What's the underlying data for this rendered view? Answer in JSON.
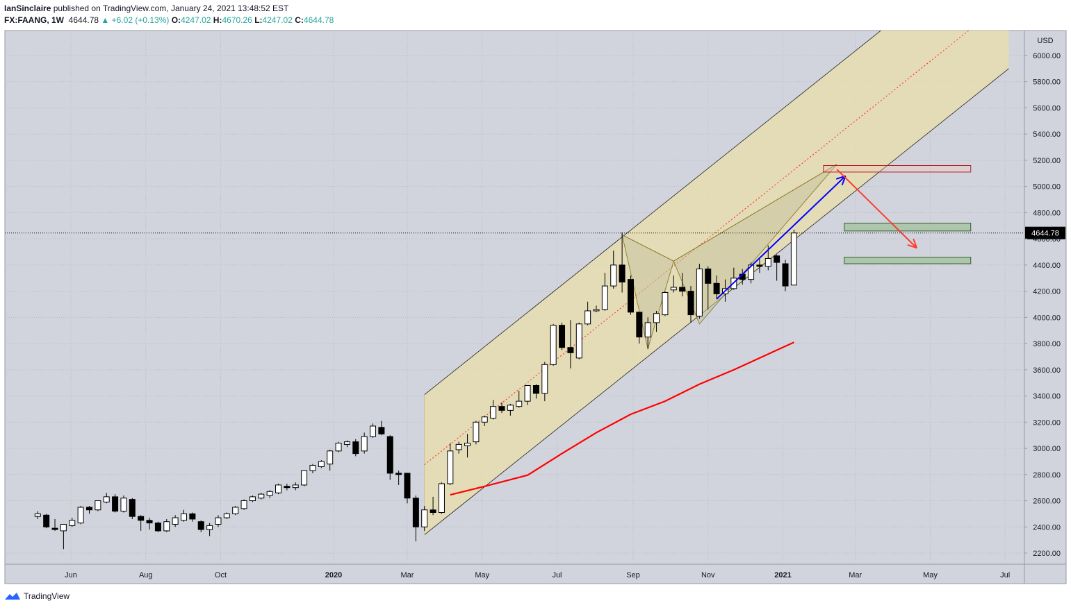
{
  "header": {
    "author": "IanSinclaire",
    "published_text": "published on TradingView.com, January 24, 2021 13:48:52 EST",
    "symbol": "FX:FAANG, 1W",
    "last": "4644.78",
    "change": "+6.02 (+0.13%)",
    "open_label": "O:",
    "open": "4247.02",
    "high_label": "H:",
    "high": "4670.26",
    "low_label": "L:",
    "low": "4247.02",
    "close_label": "C:",
    "close": "4644.78"
  },
  "footer": {
    "brand": "TradingView",
    "icon": "tradingview-logo-icon"
  },
  "colors": {
    "background": "#d1d4dc",
    "up": "#ffffff",
    "down": "#000000",
    "channel_fill": "#e9dfa9",
    "ma": "#ff0000",
    "arrow_up": "#0000ff",
    "arrow_down": "#ff3b30",
    "target_box": "#b22222",
    "support_box": "#7fa87f",
    "price_label_bg": "#000000"
  },
  "chart_data": {
    "type": "candlestick",
    "currency": "USD",
    "interval": "1W",
    "y_ticks": [
      "2200.00",
      "2400.00",
      "2600.00",
      "2800.00",
      "3000.00",
      "3200.00",
      "3400.00",
      "3600.00",
      "3800.00",
      "4000.00",
      "4200.00",
      "4400.00",
      "4600.00",
      "4800.00",
      "5000.00",
      "5200.00",
      "5400.00",
      "5600.00",
      "5800.00",
      "6000.00"
    ],
    "ylim": [
      2050,
      6200
    ],
    "x_labels": [
      {
        "text": "Jun",
        "date": "2019-06-01",
        "bold": false
      },
      {
        "text": "Aug",
        "date": "2019-08-01",
        "bold": false
      },
      {
        "text": "Oct",
        "date": "2019-10-01",
        "bold": false
      },
      {
        "text": "2020",
        "date": "2020-01-01",
        "bold": true
      },
      {
        "text": "Mar",
        "date": "2020-03-01",
        "bold": false
      },
      {
        "text": "May",
        "date": "2020-05-01",
        "bold": false
      },
      {
        "text": "Jul",
        "date": "2020-07-01",
        "bold": false
      },
      {
        "text": "Sep",
        "date": "2020-09-01",
        "bold": false
      },
      {
        "text": "Nov",
        "date": "2020-11-01",
        "bold": false
      },
      {
        "text": "2021",
        "date": "2021-01-01",
        "bold": true
      },
      {
        "text": "Mar",
        "date": "2021-03-01",
        "bold": false
      },
      {
        "text": "May",
        "date": "2021-05-01",
        "bold": false
      },
      {
        "text": "Jul",
        "date": "2021-07-01",
        "bold": false
      }
    ],
    "last_price_label": "4644.78",
    "last_price": 4644.78,
    "candles": [
      {
        "date": "2019-05-05",
        "o": 2480,
        "h": 2520,
        "l": 2460,
        "c": 2500
      },
      {
        "date": "2019-05-12",
        "o": 2490,
        "h": 2500,
        "l": 2390,
        "c": 2400
      },
      {
        "date": "2019-05-19",
        "o": 2390,
        "h": 2460,
        "l": 2370,
        "c": 2380
      },
      {
        "date": "2019-05-26",
        "o": 2370,
        "h": 2420,
        "l": 2230,
        "c": 2420
      },
      {
        "date": "2019-06-02",
        "o": 2410,
        "h": 2470,
        "l": 2400,
        "c": 2450
      },
      {
        "date": "2019-06-09",
        "o": 2430,
        "h": 2560,
        "l": 2420,
        "c": 2550
      },
      {
        "date": "2019-06-16",
        "o": 2550,
        "h": 2560,
        "l": 2500,
        "c": 2530
      },
      {
        "date": "2019-06-23",
        "o": 2530,
        "h": 2600,
        "l": 2520,
        "c": 2600
      },
      {
        "date": "2019-06-30",
        "o": 2590,
        "h": 2660,
        "l": 2580,
        "c": 2630
      },
      {
        "date": "2019-07-07",
        "o": 2630,
        "h": 2650,
        "l": 2510,
        "c": 2520
      },
      {
        "date": "2019-07-14",
        "o": 2520,
        "h": 2640,
        "l": 2510,
        "c": 2620
      },
      {
        "date": "2019-07-21",
        "o": 2610,
        "h": 2620,
        "l": 2460,
        "c": 2480
      },
      {
        "date": "2019-07-28",
        "o": 2480,
        "h": 2490,
        "l": 2370,
        "c": 2450
      },
      {
        "date": "2019-08-04",
        "o": 2450,
        "h": 2470,
        "l": 2380,
        "c": 2430
      },
      {
        "date": "2019-08-11",
        "o": 2430,
        "h": 2440,
        "l": 2360,
        "c": 2370
      },
      {
        "date": "2019-08-18",
        "o": 2370,
        "h": 2460,
        "l": 2360,
        "c": 2440
      },
      {
        "date": "2019-08-25",
        "o": 2420,
        "h": 2490,
        "l": 2400,
        "c": 2470
      },
      {
        "date": "2019-09-01",
        "o": 2450,
        "h": 2530,
        "l": 2440,
        "c": 2500
      },
      {
        "date": "2019-09-08",
        "o": 2500,
        "h": 2510,
        "l": 2440,
        "c": 2460
      },
      {
        "date": "2019-09-15",
        "o": 2440,
        "h": 2450,
        "l": 2360,
        "c": 2380
      },
      {
        "date": "2019-09-22",
        "o": 2380,
        "h": 2430,
        "l": 2330,
        "c": 2410
      },
      {
        "date": "2019-09-29",
        "o": 2420,
        "h": 2490,
        "l": 2400,
        "c": 2470
      },
      {
        "date": "2019-10-06",
        "o": 2470,
        "h": 2510,
        "l": 2460,
        "c": 2500
      },
      {
        "date": "2019-10-13",
        "o": 2500,
        "h": 2560,
        "l": 2490,
        "c": 2550
      },
      {
        "date": "2019-10-20",
        "o": 2540,
        "h": 2610,
        "l": 2530,
        "c": 2600
      },
      {
        "date": "2019-10-27",
        "o": 2600,
        "h": 2640,
        "l": 2590,
        "c": 2630
      },
      {
        "date": "2019-11-03",
        "o": 2620,
        "h": 2660,
        "l": 2610,
        "c": 2650
      },
      {
        "date": "2019-11-10",
        "o": 2640,
        "h": 2680,
        "l": 2620,
        "c": 2670
      },
      {
        "date": "2019-11-17",
        "o": 2660,
        "h": 2730,
        "l": 2650,
        "c": 2720
      },
      {
        "date": "2019-11-24",
        "o": 2710,
        "h": 2730,
        "l": 2680,
        "c": 2700
      },
      {
        "date": "2019-12-01",
        "o": 2700,
        "h": 2740,
        "l": 2680,
        "c": 2720
      },
      {
        "date": "2019-12-08",
        "o": 2720,
        "h": 2830,
        "l": 2710,
        "c": 2830
      },
      {
        "date": "2019-12-15",
        "o": 2830,
        "h": 2880,
        "l": 2810,
        "c": 2870
      },
      {
        "date": "2019-12-22",
        "o": 2860,
        "h": 2910,
        "l": 2850,
        "c": 2900
      },
      {
        "date": "2019-12-29",
        "o": 2880,
        "h": 2990,
        "l": 2830,
        "c": 2980
      },
      {
        "date": "2020-01-05",
        "o": 2980,
        "h": 3050,
        "l": 2970,
        "c": 3040
      },
      {
        "date": "2020-01-12",
        "o": 3030,
        "h": 3060,
        "l": 3010,
        "c": 3050
      },
      {
        "date": "2020-01-19",
        "o": 3050,
        "h": 3070,
        "l": 2940,
        "c": 2960
      },
      {
        "date": "2020-01-26",
        "o": 2980,
        "h": 3120,
        "l": 2960,
        "c": 3090
      },
      {
        "date": "2020-02-02",
        "o": 3090,
        "h": 3190,
        "l": 3080,
        "c": 3170
      },
      {
        "date": "2020-02-09",
        "o": 3160,
        "h": 3210,
        "l": 3100,
        "c": 3110
      },
      {
        "date": "2020-02-16",
        "o": 3090,
        "h": 3100,
        "l": 2760,
        "c": 2810
      },
      {
        "date": "2020-02-23",
        "o": 2810,
        "h": 2830,
        "l": 2720,
        "c": 2800
      },
      {
        "date": "2020-03-01",
        "o": 2810,
        "h": 2810,
        "l": 2580,
        "c": 2620
      },
      {
        "date": "2020-03-08",
        "o": 2620,
        "h": 2640,
        "l": 2290,
        "c": 2400
      },
      {
        "date": "2020-03-15",
        "o": 2400,
        "h": 2560,
        "l": 2370,
        "c": 2530
      },
      {
        "date": "2020-03-22",
        "o": 2530,
        "h": 2630,
        "l": 2490,
        "c": 2510
      },
      {
        "date": "2020-03-29",
        "o": 2510,
        "h": 2740,
        "l": 2500,
        "c": 2730
      },
      {
        "date": "2020-04-05",
        "o": 2730,
        "h": 3040,
        "l": 2720,
        "c": 2980
      },
      {
        "date": "2020-04-12",
        "o": 2990,
        "h": 3050,
        "l": 2960,
        "c": 3030
      },
      {
        "date": "2020-04-19",
        "o": 3020,
        "h": 3110,
        "l": 2930,
        "c": 3040
      },
      {
        "date": "2020-04-26",
        "o": 3050,
        "h": 3210,
        "l": 3030,
        "c": 3200
      },
      {
        "date": "2020-05-03",
        "o": 3200,
        "h": 3250,
        "l": 3170,
        "c": 3240
      },
      {
        "date": "2020-05-10",
        "o": 3230,
        "h": 3370,
        "l": 3220,
        "c": 3320
      },
      {
        "date": "2020-05-17",
        "o": 3320,
        "h": 3350,
        "l": 3270,
        "c": 3290
      },
      {
        "date": "2020-05-24",
        "o": 3290,
        "h": 3340,
        "l": 3250,
        "c": 3330
      },
      {
        "date": "2020-05-31",
        "o": 3320,
        "h": 3440,
        "l": 3310,
        "c": 3360
      },
      {
        "date": "2020-06-07",
        "o": 3360,
        "h": 3480,
        "l": 3330,
        "c": 3480
      },
      {
        "date": "2020-06-14",
        "o": 3480,
        "h": 3490,
        "l": 3380,
        "c": 3420
      },
      {
        "date": "2020-06-21",
        "o": 3420,
        "h": 3660,
        "l": 3360,
        "c": 3640
      },
      {
        "date": "2020-06-28",
        "o": 3640,
        "h": 3950,
        "l": 3630,
        "c": 3940
      },
      {
        "date": "2020-07-05",
        "o": 3940,
        "h": 3960,
        "l": 3750,
        "c": 3770
      },
      {
        "date": "2020-07-12",
        "o": 3770,
        "h": 3980,
        "l": 3610,
        "c": 3730
      },
      {
        "date": "2020-07-19",
        "o": 3690,
        "h": 3960,
        "l": 3680,
        "c": 3950
      },
      {
        "date": "2020-07-26",
        "o": 3950,
        "h": 4120,
        "l": 3940,
        "c": 4050
      },
      {
        "date": "2020-08-02",
        "o": 4050,
        "h": 4090,
        "l": 4040,
        "c": 4060
      },
      {
        "date": "2020-08-09",
        "o": 4060,
        "h": 4340,
        "l": 4050,
        "c": 4240
      },
      {
        "date": "2020-08-16",
        "o": 4240,
        "h": 4510,
        "l": 4220,
        "c": 4400
      },
      {
        "date": "2020-08-23",
        "o": 4400,
        "h": 4650,
        "l": 4190,
        "c": 4270
      },
      {
        "date": "2020-08-30",
        "o": 4290,
        "h": 4320,
        "l": 4020,
        "c": 4040
      },
      {
        "date": "2020-09-06",
        "o": 4040,
        "h": 4040,
        "l": 3800,
        "c": 3850
      },
      {
        "date": "2020-09-13",
        "o": 3850,
        "h": 4000,
        "l": 3760,
        "c": 3960
      },
      {
        "date": "2020-09-20",
        "o": 3960,
        "h": 4050,
        "l": 3890,
        "c": 4030
      },
      {
        "date": "2020-09-27",
        "o": 4020,
        "h": 4200,
        "l": 4010,
        "c": 4190
      },
      {
        "date": "2020-10-04",
        "o": 4210,
        "h": 4320,
        "l": 4190,
        "c": 4230
      },
      {
        "date": "2020-10-11",
        "o": 4230,
        "h": 4340,
        "l": 4160,
        "c": 4200
      },
      {
        "date": "2020-10-18",
        "o": 4200,
        "h": 4240,
        "l": 3960,
        "c": 4020
      },
      {
        "date": "2020-10-25",
        "o": 4010,
        "h": 4410,
        "l": 3990,
        "c": 4370
      },
      {
        "date": "2020-11-01",
        "o": 4370,
        "h": 4390,
        "l": 4060,
        "c": 4260
      },
      {
        "date": "2020-11-08",
        "o": 4260,
        "h": 4320,
        "l": 4140,
        "c": 4180
      },
      {
        "date": "2020-11-15",
        "o": 4180,
        "h": 4290,
        "l": 4120,
        "c": 4220
      },
      {
        "date": "2020-11-22",
        "o": 4220,
        "h": 4380,
        "l": 4210,
        "c": 4300
      },
      {
        "date": "2020-11-29",
        "o": 4330,
        "h": 4370,
        "l": 4250,
        "c": 4290
      },
      {
        "date": "2020-12-06",
        "o": 4290,
        "h": 4420,
        "l": 4260,
        "c": 4400
      },
      {
        "date": "2020-12-13",
        "o": 4400,
        "h": 4460,
        "l": 4340,
        "c": 4390
      },
      {
        "date": "2020-12-20",
        "o": 4390,
        "h": 4550,
        "l": 4360,
        "c": 4450
      },
      {
        "date": "2020-12-27",
        "o": 4470,
        "h": 4480,
        "l": 4280,
        "c": 4420
      },
      {
        "date": "2021-01-03",
        "o": 4410,
        "h": 4440,
        "l": 4200,
        "c": 4240
      },
      {
        "date": "2021-01-10",
        "o": 4247.02,
        "h": 4670.26,
        "l": 4247.02,
        "c": 4644.78
      }
    ],
    "ma_series": [
      {
        "date": "2020-04-05",
        "v": 2645
      },
      {
        "date": "2020-05-03",
        "v": 2710
      },
      {
        "date": "2020-06-07",
        "v": 2795
      },
      {
        "date": "2020-07-05",
        "v": 2960
      },
      {
        "date": "2020-08-02",
        "v": 3120
      },
      {
        "date": "2020-08-30",
        "v": 3260
      },
      {
        "date": "2020-09-27",
        "v": 3360
      },
      {
        "date": "2020-10-25",
        "v": 3490
      },
      {
        "date": "2020-11-22",
        "v": 3600
      },
      {
        "date": "2020-12-20",
        "v": 3720
      },
      {
        "date": "2021-01-10",
        "v": 3810
      }
    ],
    "channel": {
      "lower": [
        {
          "date": "2020-03-15",
          "v": 2340
        },
        {
          "date": "2021-07-04",
          "v": 5900
        }
      ],
      "upper": [
        {
          "date": "2020-03-15",
          "v": 3410
        },
        {
          "date": "2021-07-04",
          "v": 6970
        }
      ],
      "mid": [
        {
          "date": "2020-03-15",
          "v": 2875
        },
        {
          "date": "2021-07-04",
          "v": 6435
        }
      ]
    },
    "pattern_points": [
      {
        "date": "2020-08-23",
        "v": 4630
      },
      {
        "date": "2020-09-13",
        "v": 3760
      },
      {
        "date": "2020-10-04",
        "v": 4430
      },
      {
        "date": "2020-10-25",
        "v": 3950
      },
      {
        "date": "2021-02-14",
        "v": 5170
      }
    ],
    "target_zone": {
      "from": "2021-02-03",
      "to": "2021-06-03",
      "low": 5110,
      "high": 5160
    },
    "support_zones": [
      {
        "from": "2021-02-20",
        "to": "2021-06-03",
        "low": 4660,
        "high": 4720
      },
      {
        "from": "2021-02-20",
        "to": "2021-06-03",
        "low": 4410,
        "high": 4460
      }
    ],
    "arrow_up": [
      {
        "date": "2020-11-08",
        "v": 4140
      },
      {
        "date": "2021-02-21",
        "v": 5080
      }
    ],
    "arrow_down": [
      {
        "date": "2021-02-14",
        "v": 5130
      },
      {
        "date": "2021-04-20",
        "v": 4530
      }
    ]
  }
}
